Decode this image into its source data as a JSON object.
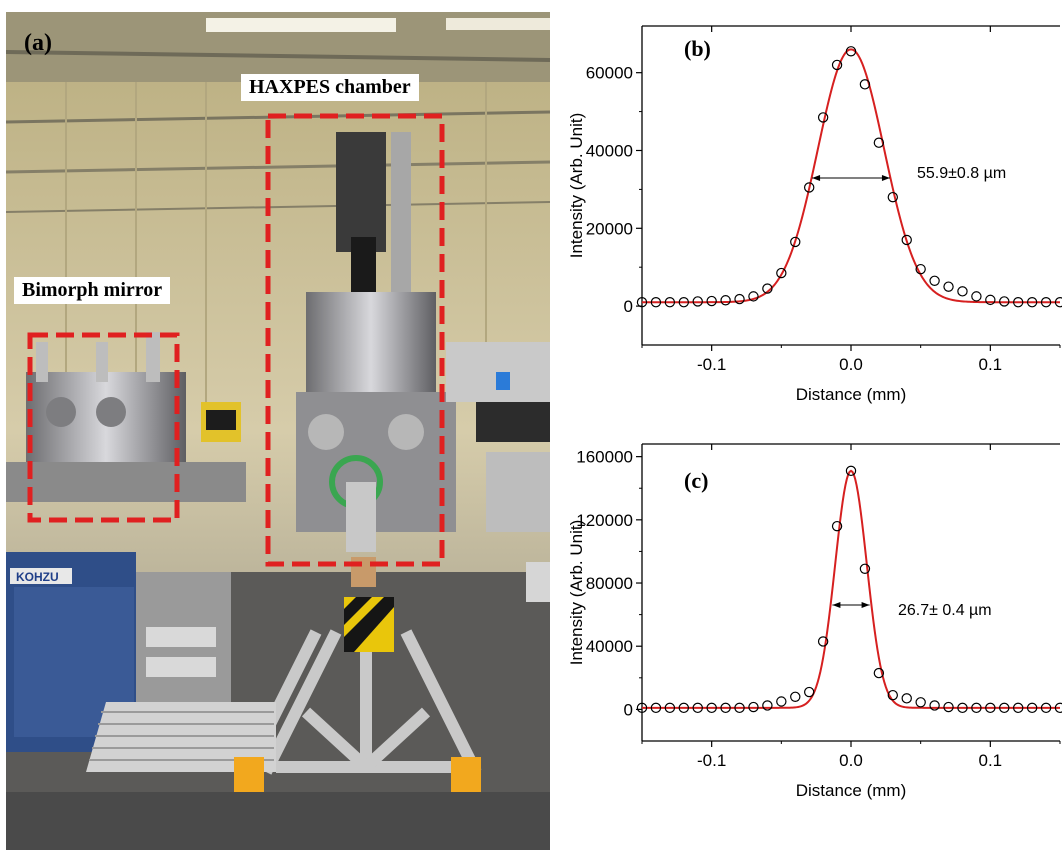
{
  "photo": {
    "panel_label": "(a)",
    "labels": {
      "haxpes": "HAXPES chamber",
      "bimorph": "Bimorph mirror",
      "brand": "KOHZU"
    },
    "colors": {
      "box": "#e02020"
    }
  },
  "chart_data": [
    {
      "type": "scatter",
      "panel_label": "(b)",
      "xlabel": "Distance (mm)",
      "ylabel": "Intensity (Arb. Unit)",
      "xlim": [
        -0.15,
        0.15
      ],
      "ylim": [
        -10000,
        72000
      ],
      "xticks": [
        -0.1,
        0.0,
        0.1
      ],
      "xtick_labels": [
        "-0.1",
        "0.0",
        "0.1"
      ],
      "yticks": [
        0,
        20000,
        40000,
        60000
      ],
      "ytick_labels": [
        "0",
        "20000",
        "40000",
        "60000"
      ],
      "annotation": "55.9±0.8 µm",
      "fwhm_mm": 0.0559,
      "series": [
        {
          "kind": "markers",
          "x": [
            -0.15,
            -0.14,
            -0.13,
            -0.12,
            -0.11,
            -0.1,
            -0.09,
            -0.08,
            -0.07,
            -0.06,
            -0.05,
            -0.04,
            -0.03,
            -0.02,
            -0.01,
            0.0,
            0.01,
            0.02,
            0.03,
            0.04,
            0.05,
            0.06,
            0.07,
            0.08,
            0.09,
            0.1,
            0.11,
            0.12,
            0.13,
            0.14,
            0.15
          ],
          "y": [
            1000,
            1000,
            1000,
            1000,
            1200,
            1300,
            1500,
            1800,
            2500,
            4500,
            8500,
            16500,
            30500,
            48500,
            62000,
            65500,
            57000,
            42000,
            28000,
            17000,
            9500,
            6500,
            5000,
            3800,
            2500,
            1600,
            1200,
            1000,
            1000,
            1000,
            1000
          ]
        },
        {
          "kind": "fit-line",
          "color": "#d62020",
          "model": "gaussian",
          "amplitude": 65000,
          "center": 0.0,
          "baseline": 1000
        }
      ]
    },
    {
      "type": "scatter",
      "panel_label": "(c)",
      "xlabel": "Distance (mm)",
      "ylabel": "Intensity (Arb. Unit)",
      "xlim": [
        -0.15,
        0.15
      ],
      "ylim": [
        -20000,
        168000
      ],
      "xticks": [
        -0.1,
        0.0,
        0.1
      ],
      "xtick_labels": [
        "-0.1",
        "0.0",
        "0.1"
      ],
      "yticks": [
        0,
        40000,
        80000,
        120000,
        160000
      ],
      "ytick_labels": [
        "0",
        "40000",
        "80000",
        "120000",
        "160000"
      ],
      "annotation": "26.7± 0.4 µm",
      "fwhm_mm": 0.0267,
      "series": [
        {
          "kind": "markers",
          "x": [
            -0.15,
            -0.14,
            -0.13,
            -0.12,
            -0.11,
            -0.1,
            -0.09,
            -0.08,
            -0.07,
            -0.06,
            -0.05,
            -0.04,
            -0.03,
            -0.02,
            -0.01,
            0.0,
            0.01,
            0.02,
            0.03,
            0.04,
            0.05,
            0.06,
            0.07,
            0.08,
            0.09,
            0.1,
            0.11,
            0.12,
            0.13,
            0.14,
            0.15
          ],
          "y": [
            1000,
            1000,
            1000,
            1000,
            1000,
            1000,
            1000,
            1000,
            1500,
            2500,
            5000,
            8000,
            11000,
            43000,
            116000,
            151000,
            89000,
            23000,
            9000,
            7000,
            4500,
            2500,
            1500,
            1000,
            1000,
            1000,
            1000,
            1000,
            1000,
            1000,
            1000
          ]
        },
        {
          "kind": "fit-line",
          "color": "#d62020",
          "model": "gaussian",
          "amplitude": 150000,
          "center": 0.0,
          "baseline": 1000
        }
      ]
    }
  ]
}
